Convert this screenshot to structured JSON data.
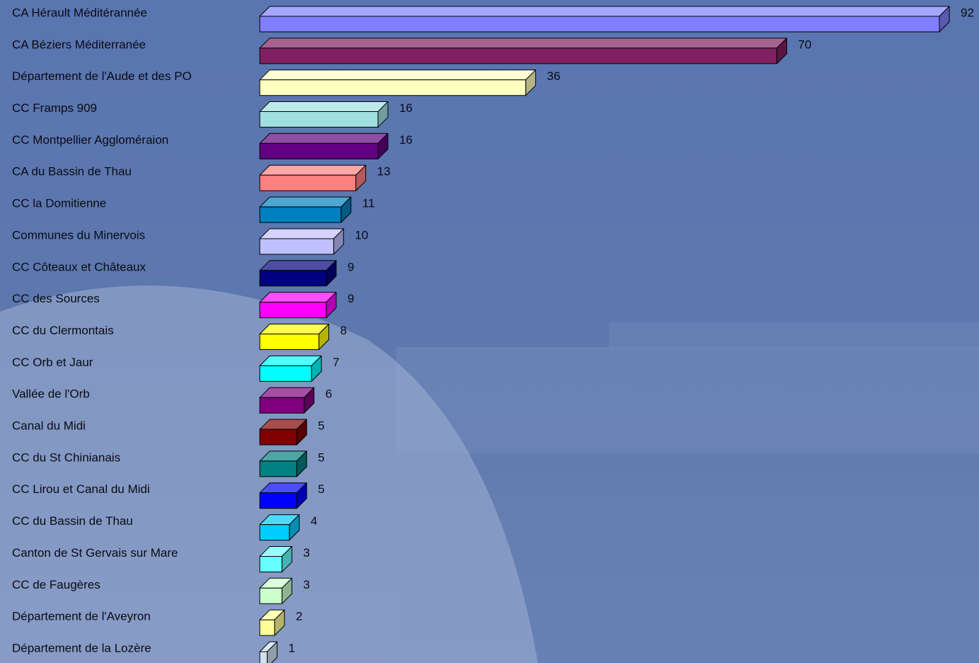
{
  "chart_data": {
    "type": "bar3d",
    "categories": [
      "CA Hérault Méditérannée",
      "CA Béziers Méditerranée",
      "Département de l'Aude et des PO",
      "CC Framps 909",
      "CC Montpellier Aggloméraion",
      "CA du Bassin de Thau",
      "CC la Domitienne",
      "Communes du Minervois",
      "CC Côteaux et Châteaux",
      "CC des Sources",
      "CC du Clermontais",
      "CC Orb et Jaur",
      "Vallée de l'Orb",
      "Canal du Midi",
      "CC du St Chinianais",
      "CC Lirou et Canal du Midi",
      "CC du Bassin de Thau",
      "Canton de St Gervais sur Mare",
      "CC de Faugères",
      "Département de l'Aveyron",
      "Département de la Lozère"
    ],
    "values": [
      92,
      70,
      36,
      16,
      16,
      13,
      11,
      10,
      9,
      9,
      8,
      7,
      6,
      5,
      5,
      5,
      4,
      3,
      3,
      2,
      1
    ],
    "colors": [
      "#8080ff",
      "#802060",
      "#ffffc0",
      "#a0e0e0",
      "#600080",
      "#ff8080",
      "#0080c0",
      "#c0c0ff",
      "#000080",
      "#ff00ff",
      "#ffff00",
      "#00ffff",
      "#800080",
      "#800000",
      "#008080",
      "#0000ff",
      "#00ccff",
      "#66ffff",
      "#ccffcc",
      "#ffff99",
      "#d0e0f0"
    ]
  }
}
